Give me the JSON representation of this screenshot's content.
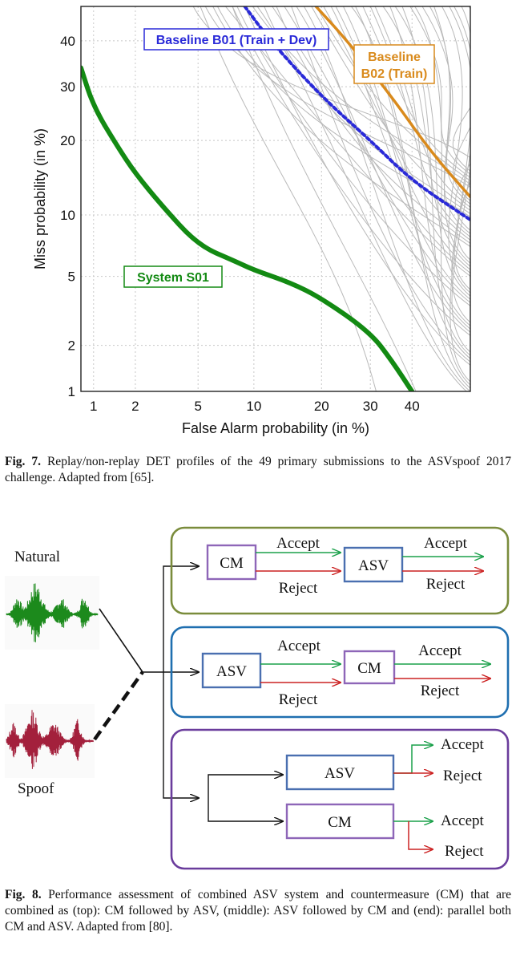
{
  "figure7": {
    "caption_label": "Fig. 7.",
    "caption_text": " Replay/non-replay DET profiles of the 49 primary submissions to the ASVspoof 2017 challenge. Adapted from [65].",
    "chart_data": {
      "type": "line",
      "xlabel": "False Alarm probability (in %)",
      "ylabel": "Miss probability (in %)",
      "x_ticks": [
        1,
        2,
        5,
        10,
        20,
        30,
        40
      ],
      "y_ticks": [
        1,
        2,
        5,
        10,
        20,
        30,
        40
      ],
      "x_scale": "probit",
      "y_scale": "probit",
      "xlim": [
        0.8,
        55
      ],
      "ylim": [
        1,
        48
      ],
      "grid": true,
      "series": [
        {
          "name": "System S01",
          "color": "#138a13",
          "points": [
            [
              0.8,
              34
            ],
            [
              1,
              26
            ],
            [
              1.5,
              19
            ],
            [
              2,
              15
            ],
            [
              3,
              11
            ],
            [
              5,
              7.2
            ],
            [
              8,
              6
            ],
            [
              10,
              5.4
            ],
            [
              15,
              4.6
            ],
            [
              20,
              3.8
            ],
            [
              30,
              2.4
            ],
            [
              35,
              1.6
            ],
            [
              40,
              1.0
            ]
          ]
        },
        {
          "name": "Baseline B01 (Train + Dev)",
          "color": "#2a2ad8",
          "points": [
            [
              9,
              48
            ],
            [
              12,
              40
            ],
            [
              20,
              28
            ],
            [
              30,
              20
            ],
            [
              40,
              14
            ],
            [
              55,
              9.5
            ]
          ]
        },
        {
          "name": "Baseline B02 (Train)",
          "color": "#d98a1c",
          "points": [
            [
              19,
              48
            ],
            [
              25,
              40
            ],
            [
              35,
              28
            ],
            [
              45,
              18
            ],
            [
              55,
              12
            ]
          ]
        }
      ],
      "annotations": [
        "System S01",
        "Baseline B01 (Train + Dev)",
        "Baseline\nB02 (Train)"
      ]
    }
  },
  "figure8": {
    "caption_label": "Fig. 8.",
    "caption_text": " Performance assessment of combined ASV system and countermeasure (CM) that are combined as (top): CM followed by ASV, (middle): ASV followed by CM and (end): parallel both CM and ASV. Adapted from [80].",
    "natural_label": "Natural",
    "spoof_label": "Spoof",
    "colors": {
      "top": "#7a8c3c",
      "middle": "#1f6fb0",
      "bottom": "#6a3c9c",
      "accept": "#1aa04a",
      "reject": "#cc2222",
      "natural": "#1c8a1c",
      "spoof": "#a3203c",
      "asv_box": "#4a6fb0",
      "cm_box": "#8e66b8"
    },
    "top": {
      "box1": "CM",
      "box2": "ASV",
      "accept1": "Accept",
      "reject1": "Reject",
      "accept2": "Accept",
      "reject2": "Reject"
    },
    "middle": {
      "box1": "ASV",
      "box2": "CM",
      "accept1": "Accept",
      "reject1": "Reject",
      "accept2": "Accept",
      "reject2": "Reject"
    },
    "bottom": {
      "box1": "ASV",
      "box2": "CM",
      "accept1": "Accept",
      "reject1": "Reject",
      "accept2": "Accept",
      "reject2": "Reject"
    }
  }
}
